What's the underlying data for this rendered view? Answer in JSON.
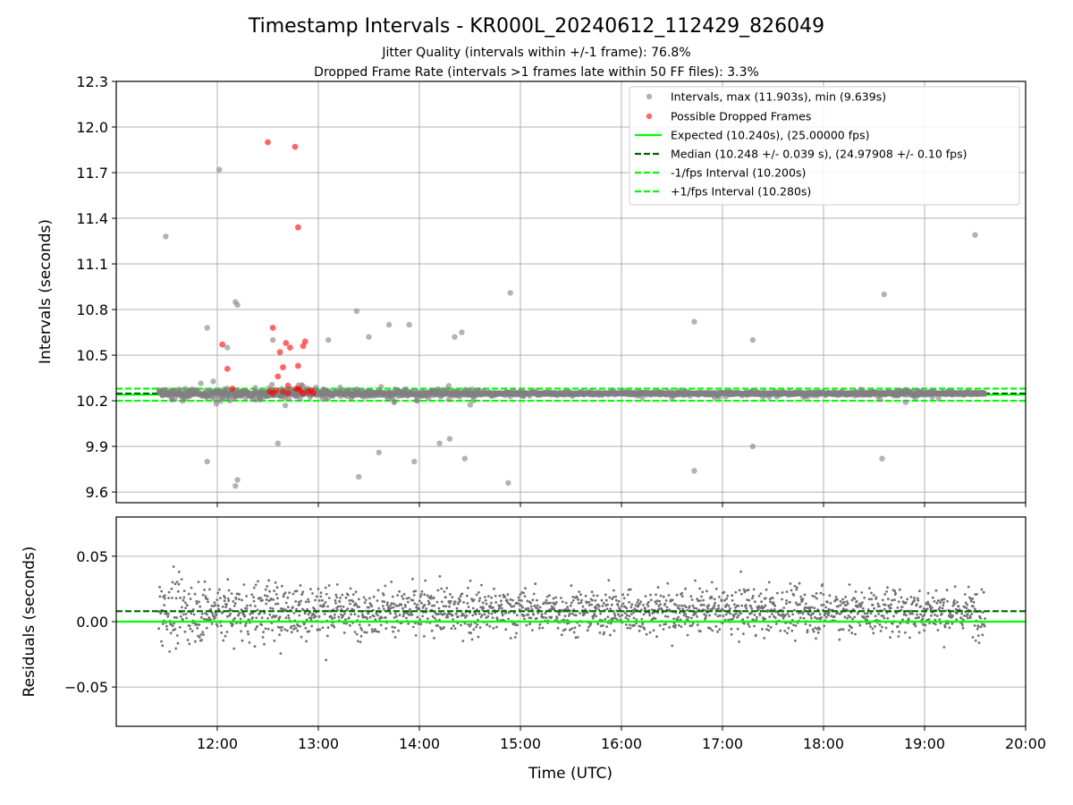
{
  "chart_data": {
    "type": "scatter",
    "title": "Timestamp Intervals - KR000L_20240612_112429_826049",
    "subtitle_lines": [
      "Jitter Quality (intervals within +/-1 frame): 76.8%",
      "Dropped Frame Rate (intervals >1 frames late within 50 FF files): 3.3%"
    ],
    "xlabel": "Time (UTC)",
    "x_ticks": [
      "12:00",
      "13:00",
      "14:00",
      "15:00",
      "16:00",
      "17:00",
      "18:00",
      "19:00",
      "20:00"
    ],
    "x_range_hours": [
      11.0,
      20.0
    ],
    "time_span_hours": [
      11.42,
      19.6
    ],
    "grid": true,
    "panels": [
      {
        "name": "intervals",
        "ylabel": "Intervals (seconds)",
        "ylim": [
          9.53,
          12.3
        ],
        "y_ticks": [
          "9.6",
          "9.9",
          "10.2",
          "10.5",
          "10.8",
          "11.1",
          "11.4",
          "11.7",
          "12.0",
          "12.3"
        ],
        "legend_position": "top-right",
        "series": [
          {
            "name": "Intervals, max (11.903s), min (9.639s)",
            "kind": "scatter",
            "color": "#808080",
            "points": [
              [
                11.49,
                11.28
              ],
              [
                12.02,
                11.72
              ],
              [
                12.18,
                10.85
              ],
              [
                12.2,
                10.83
              ],
              [
                14.9,
                10.91
              ],
              [
                18.6,
                10.9
              ],
              [
                19.5,
                11.29
              ],
              [
                13.38,
                10.79
              ],
              [
                16.72,
                10.72
              ],
              [
                17.3,
                10.6
              ],
              [
                12.18,
                9.64
              ],
              [
                12.2,
                9.68
              ],
              [
                14.88,
                9.66
              ],
              [
                16.72,
                9.74
              ],
              [
                17.3,
                9.9
              ],
              [
                18.58,
                9.82
              ],
              [
                11.9,
                10.68
              ],
              [
                12.1,
                10.55
              ],
              [
                12.55,
                10.6
              ],
              [
                13.1,
                10.6
              ],
              [
                13.5,
                10.62
              ],
              [
                13.7,
                10.7
              ],
              [
                13.9,
                10.7
              ],
              [
                14.35,
                10.62
              ],
              [
                14.42,
                10.65
              ],
              [
                11.9,
                9.8
              ],
              [
                12.6,
                9.92
              ],
              [
                13.4,
                9.7
              ],
              [
                13.6,
                9.86
              ],
              [
                13.95,
                9.8
              ],
              [
                14.2,
                9.92
              ],
              [
                14.3,
                9.95
              ],
              [
                14.45,
                9.82
              ]
            ]
          },
          {
            "name": "Possible Dropped Frames",
            "kind": "scatter",
            "color": "#ff0000",
            "points": [
              [
                12.5,
                11.9
              ],
              [
                12.77,
                11.87
              ],
              [
                12.8,
                11.34
              ],
              [
                12.05,
                10.57
              ],
              [
                12.55,
                10.68
              ],
              [
                12.62,
                10.52
              ],
              [
                12.68,
                10.58
              ],
              [
                12.72,
                10.55
              ],
              [
                12.87,
                10.59
              ],
              [
                12.85,
                10.56
              ],
              [
                12.8,
                10.43
              ],
              [
                12.65,
                10.42
              ],
              [
                12.1,
                10.41
              ],
              [
                12.6,
                10.36
              ],
              [
                12.15,
                10.28
              ],
              [
                12.7,
                10.3
              ],
              [
                12.52,
                10.26
              ],
              [
                12.55,
                10.25
              ],
              [
                12.58,
                10.27
              ],
              [
                12.65,
                10.26
              ],
              [
                12.7,
                10.25
              ],
              [
                12.78,
                10.28
              ],
              [
                12.82,
                10.27
              ],
              [
                12.85,
                10.25
              ],
              [
                12.9,
                10.26
              ],
              [
                12.93,
                10.27
              ],
              [
                12.95,
                10.25
              ],
              [
                12.8,
                10.28
              ]
            ]
          },
          {
            "name": "Expected (10.240s), (25.00000 fps)",
            "kind": "hline",
            "y": 10.24,
            "color": "#00ff00",
            "style": "solid"
          },
          {
            "name": "Median (10.248 +/- 0.039 s), (24.97908 +/- 0.10 fps)",
            "kind": "hline",
            "y": 10.248,
            "color": "#006400",
            "style": "dashed"
          },
          {
            "name": "-1/fps Interval (10.200s)",
            "kind": "hline",
            "y": 10.2,
            "color": "#00ff00",
            "style": "dashed"
          },
          {
            "name": "+1/fps Interval (10.280s)",
            "kind": "hline",
            "y": 10.28,
            "color": "#00ff00",
            "style": "dashed"
          }
        ]
      },
      {
        "name": "residuals",
        "ylabel": "Residuals (seconds)",
        "ylim": [
          -0.08,
          0.08
        ],
        "y_ticks": [
          "−0.05",
          "0.00",
          "0.05"
        ],
        "series": [
          {
            "kind": "scatter",
            "color": "#707070",
            "description_spread": "dense, roughly uniform within ±0.08 s over the time span"
          },
          {
            "kind": "hline",
            "y": 0.0,
            "color": "#00ff00",
            "style": "solid"
          },
          {
            "kind": "hline",
            "y": 0.008,
            "color": "#006400",
            "style": "dashed"
          }
        ]
      }
    ]
  }
}
